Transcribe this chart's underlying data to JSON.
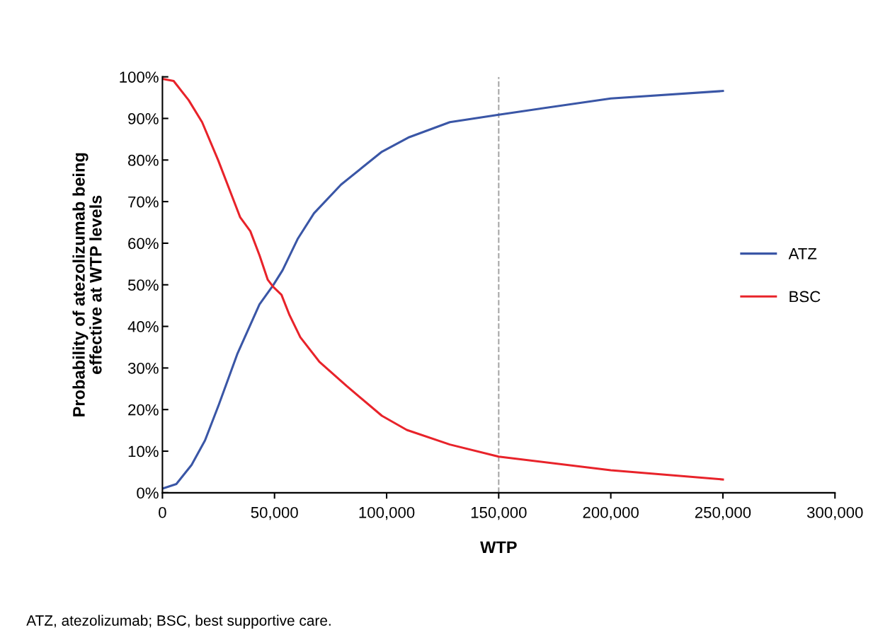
{
  "chart_data": {
    "type": "line",
    "xlabel": "WTP",
    "ylabel": "Probability of atezolizumab being\neffective at WTP levels",
    "annotations": [
      "ATZ, atezolizumab; BSC, best supportive care."
    ],
    "xlim": [
      0,
      300000
    ],
    "xticks": [
      {
        "value": 0,
        "label": "0"
      },
      {
        "value": 50000,
        "label": "50,000"
      },
      {
        "value": 100000,
        "label": "100,000"
      },
      {
        "value": 150000,
        "label": "150,000"
      },
      {
        "value": 200000,
        "label": "200,000"
      },
      {
        "value": 250000,
        "label": "250,000"
      },
      {
        "value": 300000,
        "label": "300,000"
      }
    ],
    "ylim": [
      0,
      100
    ],
    "yticks": [
      {
        "value": 0,
        "label": "0%"
      },
      {
        "value": 10,
        "label": "10%"
      },
      {
        "value": 20,
        "label": "20%"
      },
      {
        "value": 30,
        "label": "30%"
      },
      {
        "value": 40,
        "label": "40%"
      },
      {
        "value": 50,
        "label": "50%"
      },
      {
        "value": 60,
        "label": "60%"
      },
      {
        "value": 70,
        "label": "70%"
      },
      {
        "value": 80,
        "label": "80%"
      },
      {
        "value": 90,
        "label": "90%"
      },
      {
        "value": 100,
        "label": "100%"
      }
    ],
    "grid": false,
    "legend": "right",
    "marker": "none",
    "line_style": "solid",
    "ref_lines": [
      {
        "axis": "x",
        "value": 150000,
        "color": "#a6a6a6",
        "line_style": "dashed"
      }
    ],
    "series": [
      {
        "name": "ATZ",
        "color": "#3a56a6",
        "x": [
          0,
          6200,
          13000,
          19000,
          25100,
          33500,
          43300,
          49400,
          53600,
          60300,
          67600,
          79700,
          97900,
          110100,
          128200,
          150000,
          200000,
          250000
        ],
        "values": [
          1.0,
          2.1,
          6.7,
          12.6,
          21.1,
          33.5,
          45.3,
          49.9,
          53.5,
          61,
          67.2,
          74.1,
          82,
          85.5,
          89.1,
          90.9,
          94.8,
          96.6
        ]
      },
      {
        "name": "BSC",
        "color": "#e8232a",
        "x": [
          0,
          5000,
          11700,
          17700,
          24900,
          34700,
          39200,
          43300,
          47000,
          49400,
          53100,
          56700,
          61500,
          70000,
          82100,
          97900,
          109000,
          128200,
          150000,
          200000,
          250000
        ],
        "values": [
          99.5,
          99.0,
          94.4,
          89.1,
          79.9,
          66.2,
          62.9,
          57.1,
          51.2,
          49.5,
          47.6,
          42.7,
          37.4,
          31.5,
          25.7,
          18.5,
          15.1,
          11.6,
          8.7,
          5.4,
          3.2
        ]
      }
    ]
  }
}
